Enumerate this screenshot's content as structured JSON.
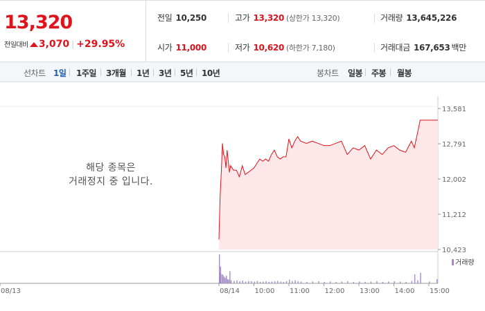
{
  "summary": {
    "price": "13,320",
    "change_label": "전일대비",
    "change_value": "3,070",
    "change_percent": "+29.95%",
    "prev_close_label": "전일",
    "prev_close": "10,250",
    "open_label": "시가",
    "open": "11,000",
    "high_label": "고가",
    "high": "13,320",
    "upper_limit": "(상한가 13,320)",
    "low_label": "저가",
    "low": "10,620",
    "lower_limit": "(하한가 7,180)",
    "volume_label": "거래량",
    "volume": "13,645,226",
    "amount_label": "거래대금",
    "amount": "167,653",
    "amount_unit": "백만"
  },
  "colors": {
    "up": "#e0121c",
    "active_tab": "#1a5fb4",
    "area_fill": "#fde7e8",
    "volume_bar": "#a48cc4"
  },
  "tabs": {
    "line_header": "선차트",
    "line": [
      "1일",
      "1주일",
      "3개월",
      "1년",
      "3년",
      "5년",
      "10년"
    ],
    "active": "1일",
    "candle_header": "봉차트",
    "candle": [
      "일봉",
      "주봉",
      "월봉"
    ]
  },
  "halt_message": [
    "해당 종목은",
    "거래정지 중 입니다."
  ],
  "chart_data": {
    "type": "area",
    "y_ticks": [
      "13,581",
      "12,791",
      "12,002",
      "11,212",
      "10,423"
    ],
    "ylim": [
      10423,
      13581
    ],
    "x_ticks": [
      "08/13",
      "08/14",
      "10:00",
      "11:00",
      "12:00",
      "13:00",
      "14:00",
      "15:00"
    ],
    "volume_legend": "거래량",
    "x": [
      "09:00",
      "09:01",
      "09:02",
      "09:04",
      "09:06",
      "09:08",
      "09:10",
      "09:12",
      "09:14",
      "09:16",
      "09:18",
      "09:20",
      "09:25",
      "09:30",
      "09:35",
      "09:40",
      "09:45",
      "09:50",
      "09:55",
      "10:00",
      "10:05",
      "10:10",
      "10:15",
      "10:20",
      "10:25",
      "10:30",
      "10:35",
      "10:40",
      "10:45",
      "10:50",
      "10:55",
      "11:00",
      "11:05",
      "11:10",
      "11:15",
      "11:20",
      "11:30",
      "11:40",
      "11:50",
      "12:00",
      "12:10",
      "12:20",
      "12:30",
      "12:40",
      "12:50",
      "13:00",
      "13:10",
      "13:20",
      "13:30",
      "13:40",
      "13:50",
      "14:00",
      "14:10",
      "14:20",
      "14:30",
      "14:35",
      "14:40",
      "14:45",
      "15:00",
      "15:20"
    ],
    "values": [
      10650,
      11150,
      11600,
      12150,
      12800,
      12550,
      12500,
      12250,
      12650,
      12400,
      12150,
      12300,
      12200,
      12200,
      12050,
      12300,
      12100,
      12150,
      12200,
      12250,
      12350,
      12450,
      12400,
      12450,
      12400,
      12550,
      12650,
      12500,
      12450,
      12500,
      12500,
      12900,
      12700,
      12850,
      12950,
      12850,
      12800,
      12850,
      12800,
      12750,
      12750,
      12800,
      12850,
      12550,
      12700,
      12650,
      12750,
      12450,
      12650,
      12550,
      12700,
      12750,
      12650,
      12600,
      12850,
      12700,
      13000,
      13320,
      13320,
      13320
    ],
    "volume": [
      95,
      35,
      55,
      30,
      28,
      22,
      18,
      25,
      14,
      12,
      40,
      10,
      8,
      10,
      7,
      9,
      6,
      8,
      7,
      6,
      8,
      5,
      6,
      7,
      5,
      6,
      7,
      8,
      6,
      5,
      7,
      12,
      8,
      10,
      7,
      6,
      5,
      6,
      7,
      5,
      6,
      5,
      6,
      7,
      5,
      6,
      5,
      6,
      7,
      5,
      6,
      7,
      6,
      5,
      8,
      30,
      10,
      35,
      6,
      14
    ]
  }
}
